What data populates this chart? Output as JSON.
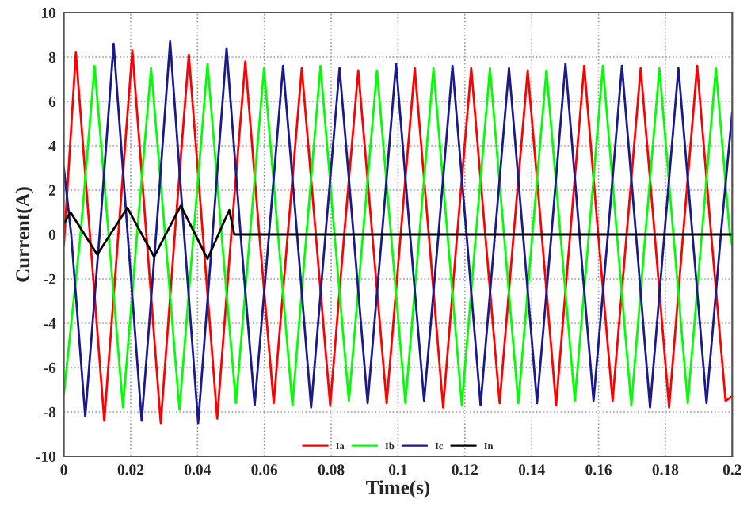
{
  "chart_data": {
    "type": "line",
    "xlabel": "Time(s)",
    "ylabel": "Current(A)",
    "xlim": [
      0,
      0.2
    ],
    "ylim": [
      -10,
      10
    ],
    "xticks": [
      0,
      0.02,
      0.04,
      0.06,
      0.08,
      0.1,
      0.12,
      0.14,
      0.16,
      0.18,
      0.2
    ],
    "yticks": [
      -10,
      -8,
      -6,
      -4,
      -2,
      0,
      2,
      4,
      6,
      8,
      10
    ],
    "grid": true,
    "legend": "bottom",
    "line_style": "solid",
    "marker": "none",
    "series": [
      {
        "name": "Ia",
        "color": "#ff0000",
        "x": [
          0,
          0.0036,
          0.0078,
          0.0121,
          0.0163,
          0.0205,
          0.0247,
          0.029,
          0.0332,
          0.0374,
          0.0416,
          0.0459,
          0.0501,
          0.0543,
          0.0585,
          0.0628,
          0.067,
          0.0712,
          0.0754,
          0.0797,
          0.0839,
          0.0881,
          0.0923,
          0.0966,
          0.1008,
          0.105,
          0.1092,
          0.1135,
          0.1177,
          0.1219,
          0.1261,
          0.1304,
          0.1346,
          0.1388,
          0.143,
          0.1473,
          0.1515,
          0.1557,
          0.1599,
          0.1642,
          0.1684,
          0.1726,
          0.1768,
          0.1811,
          0.1853,
          0.1895,
          0.1937,
          0.198,
          0.2
        ],
        "values": [
          -0.5,
          8.2,
          0,
          -8.4,
          0,
          8.3,
          0,
          -8.5,
          0,
          8.1,
          0,
          -8.3,
          0,
          7.8,
          0,
          -7.6,
          0,
          7.5,
          0,
          -7.7,
          0,
          7.4,
          0,
          -7.6,
          0,
          7.5,
          0,
          -7.8,
          0,
          7.5,
          0,
          -7.6,
          0,
          7.4,
          0,
          -7.7,
          0,
          7.6,
          0,
          -7.5,
          0,
          7.5,
          0,
          -7.8,
          0,
          7.6,
          0,
          -7.5,
          -7.3
        ]
      },
      {
        "name": "Ib",
        "color": "#00ff00",
        "x": [
          0,
          0.005,
          0.0092,
          0.0134,
          0.0177,
          0.0219,
          0.0261,
          0.0303,
          0.0346,
          0.0388,
          0.043,
          0.0472,
          0.0515,
          0.0557,
          0.0599,
          0.0641,
          0.0684,
          0.0726,
          0.0768,
          0.081,
          0.0853,
          0.0895,
          0.0937,
          0.0979,
          0.1022,
          0.1064,
          0.1106,
          0.1148,
          0.1191,
          0.1233,
          0.1275,
          0.1317,
          0.136,
          0.1402,
          0.1444,
          0.1486,
          0.1529,
          0.1571,
          0.1613,
          0.1655,
          0.1698,
          0.174,
          0.1782,
          0.1824,
          0.1867,
          0.1909,
          0.1951,
          0.1993,
          0.2
        ],
        "values": [
          -7.2,
          0,
          7.6,
          0,
          -7.8,
          0,
          7.5,
          0,
          -7.9,
          0,
          7.7,
          0,
          -7.6,
          0,
          7.5,
          0,
          -7.7,
          0,
          7.6,
          0,
          -7.5,
          0,
          7.4,
          0,
          -7.6,
          0,
          7.5,
          0,
          -7.7,
          0,
          7.5,
          0,
          -7.6,
          0,
          7.4,
          0,
          -7.5,
          0,
          7.6,
          0,
          -7.7,
          0,
          7.5,
          0,
          -7.6,
          0,
          7.5,
          0,
          -0.5
        ]
      },
      {
        "name": "Ic",
        "color": "#1a1a8c",
        "x": [
          0,
          0.0022,
          0.0064,
          0.0107,
          0.0149,
          0.0191,
          0.0233,
          0.0276,
          0.0318,
          0.036,
          0.0402,
          0.0445,
          0.0487,
          0.0529,
          0.0571,
          0.0614,
          0.0656,
          0.0698,
          0.074,
          0.0783,
          0.0825,
          0.0867,
          0.0909,
          0.0952,
          0.0994,
          0.1036,
          0.1078,
          0.1121,
          0.1163,
          0.1205,
          0.1247,
          0.129,
          0.1332,
          0.1374,
          0.1416,
          0.1459,
          0.1501,
          0.1543,
          0.1585,
          0.1628,
          0.167,
          0.1712,
          0.1754,
          0.1797,
          0.1839,
          0.1881,
          0.1923,
          0.1966,
          0.2
        ],
        "values": [
          3.0,
          0,
          -8.2,
          0,
          8.6,
          0,
          -8.4,
          0,
          8.7,
          0,
          -8.5,
          0,
          8.4,
          0,
          -7.7,
          0,
          7.6,
          0,
          -7.8,
          0,
          7.5,
          0,
          -7.6,
          0,
          7.7,
          0,
          -7.5,
          0,
          7.6,
          0,
          -7.7,
          0,
          7.5,
          0,
          -7.6,
          0,
          7.7,
          0,
          -7.5,
          0,
          7.6,
          0,
          -7.8,
          0,
          7.5,
          0,
          -7.6,
          0,
          5.5
        ]
      },
      {
        "name": "In",
        "color": "#000000",
        "x": [
          0,
          0.002,
          0.01,
          0.019,
          0.027,
          0.035,
          0.043,
          0.0495,
          0.051,
          0.2
        ],
        "values": [
          0.5,
          1.0,
          -0.9,
          1.2,
          -1.0,
          1.3,
          -1.1,
          1.1,
          0,
          0
        ]
      }
    ]
  }
}
